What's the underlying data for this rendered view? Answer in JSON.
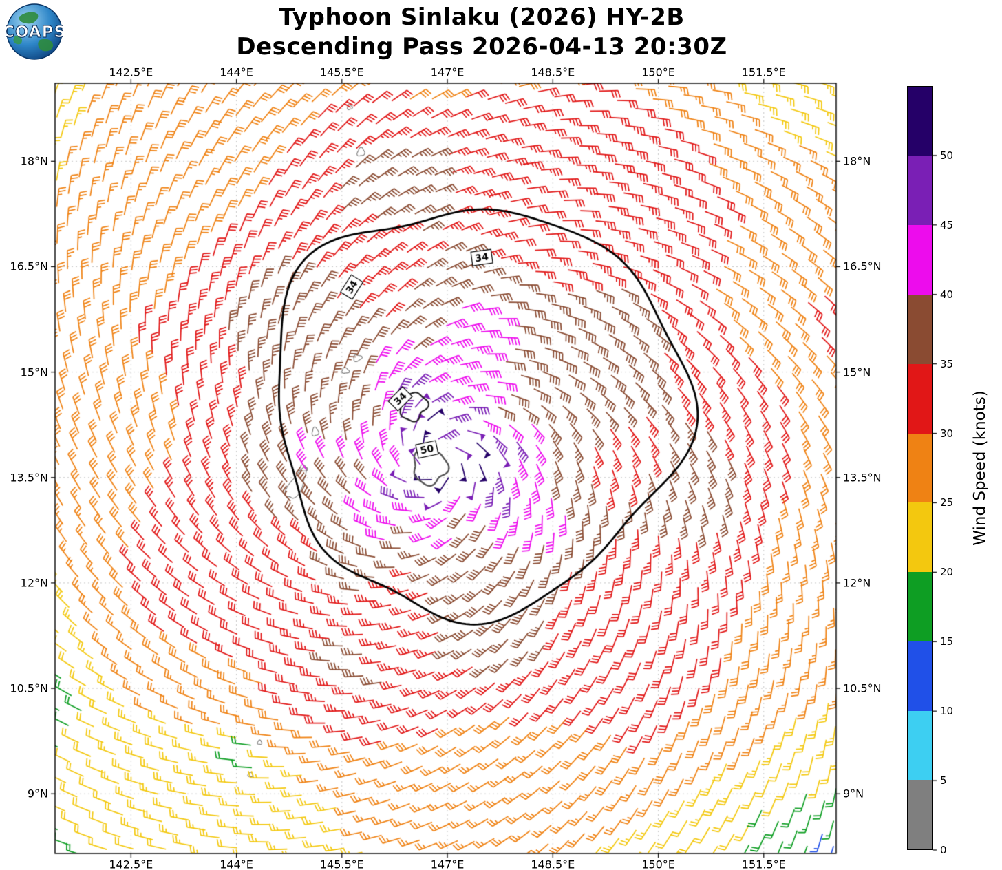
{
  "header": {
    "logo_text": "COAPS"
  },
  "chart_data": {
    "type": "wind-barb-field",
    "title": "Typhoon Sinlaku (2026) HY-2B",
    "subtitle": "Descending Pass 2026-04-13 20:30Z",
    "x_axis": {
      "tick_labels": [
        "142.5°E",
        "144°E",
        "145.5°E",
        "147°E",
        "148.5°E",
        "150°E",
        "151.5°E"
      ],
      "tick_values": [
        142.5,
        144,
        145.5,
        147,
        148.5,
        150,
        151.5
      ],
      "range": [
        141.42,
        152.53
      ],
      "labels_on": [
        "top",
        "bottom"
      ]
    },
    "y_axis": {
      "tick_labels": [
        "18°N",
        "16.5°N",
        "15°N",
        "13.5°N",
        "12°N",
        "10.5°N",
        "9°N"
      ],
      "tick_values": [
        18,
        16.5,
        15,
        13.5,
        12,
        10.5,
        9
      ],
      "range": [
        8.15,
        19.11
      ],
      "labels_on": [
        "left",
        "right"
      ]
    },
    "grid": {
      "visible": true,
      "style": "dashed"
    },
    "colorbar": {
      "label": "Wind Speed (knots)",
      "tick_values": [
        0,
        5,
        10,
        15,
        20,
        25,
        30,
        35,
        40,
        45,
        50
      ],
      "vmax": 55,
      "segment_colors": [
        "#7f7f7f",
        "#3dcff2",
        "#2050e8",
        "#0e9e23",
        "#f3c80f",
        "#ef8214",
        "#e11717",
        "#8a4b32",
        "#ed0ced",
        "#7a1fb5",
        "#250068"
      ]
    },
    "storm": {
      "name": "Sinlaku",
      "center_lon": 146.9,
      "center_lat": 13.75,
      "vmax_kt": 55,
      "rmw_deg": 0.3,
      "inflow_deg": 25,
      "asymmetry_amp": 0.16,
      "asymmetry_dir_rad": 1.1
    },
    "weak_spots": [
      {
        "lon": 152.5,
        "lat": 8.2,
        "r2": 0.8,
        "amp": 0.33
      },
      {
        "lon": 144.18,
        "lat": 9.5,
        "r2": 0.05,
        "amp": 0.45
      },
      {
        "lon": 141.3,
        "lat": 10.3,
        "r2": 0.5,
        "amp": 0.2
      }
    ],
    "contours": {
      "levels_kt": [
        34,
        50
      ],
      "loops": {
        "outer34": {
          "level": 34,
          "center_lon": 147.3,
          "center_lat": 14.3,
          "radius_deg": 2.9,
          "asym_amp": 0.08,
          "asym_dir_rad": 1.1,
          "wiggle": [
            0.05,
            0.7,
            0.035,
            2.0,
            0.02
          ],
          "color": "#000000",
          "width": 2.8
        },
        "ring50": {
          "level": 50,
          "center_lon": 146.75,
          "center_lat": 13.65,
          "radius_deg": 0.24,
          "asym_amp": 0,
          "asym_dir_rad": 0,
          "wiggle": [
            0.1,
            1.0,
            0.08,
            2.5,
            0
          ],
          "color": "#555555",
          "width": 2.4
        },
        "pocket34": {
          "level": 34,
          "center_lon": 146.5,
          "center_lat": 14.52,
          "radius_deg": 0.2,
          "asym_amp": 0,
          "asym_dir_rad": 0,
          "wiggle": [
            0.12,
            0.5,
            0.1,
            1.5,
            0
          ],
          "color": "#222222",
          "width": 2.2
        }
      },
      "labels": [
        {
          "text": "34",
          "lon": 145.64,
          "lat": 16.21,
          "rot_deg": -58
        },
        {
          "text": "34",
          "lon": 147.49,
          "lat": 16.63,
          "rot_deg": -8
        },
        {
          "text": "34",
          "lon": 146.33,
          "lat": 14.62,
          "rot_deg": -45
        },
        {
          "text": "50",
          "lon": 146.71,
          "lat": 13.9,
          "rot_deg": -12
        }
      ]
    },
    "islands": [
      {
        "lon": 145.61,
        "lat": 18.77,
        "rx": 0.035,
        "ry": 0.035,
        "rot_deg": 0
      },
      {
        "lon": 145.77,
        "lat": 18.13,
        "rx": 0.05,
        "ry": 0.06,
        "rot_deg": 20
      },
      {
        "lon": 145.72,
        "lat": 15.2,
        "rx": 0.06,
        "ry": 0.045,
        "rot_deg": -15
      },
      {
        "lon": 145.55,
        "lat": 15.02,
        "rx": 0.05,
        "ry": 0.04,
        "rot_deg": 10
      },
      {
        "lon": 145.12,
        "lat": 14.15,
        "rx": 0.045,
        "ry": 0.06,
        "rot_deg": 0
      },
      {
        "lon": 144.95,
        "lat": 13.63,
        "rx": 0.055,
        "ry": 0.045,
        "rot_deg": 0
      },
      {
        "lon": 144.85,
        "lat": 13.4,
        "rx": 0.09,
        "ry": 0.24,
        "rot_deg": 30
      },
      {
        "lon": 144.33,
        "lat": 9.73,
        "rx": 0.03,
        "ry": 0.03,
        "rot_deg": 0
      },
      {
        "lon": 144.2,
        "lat": 9.27,
        "rx": 0.035,
        "ry": 0.03,
        "rot_deg": 0
      }
    ]
  }
}
